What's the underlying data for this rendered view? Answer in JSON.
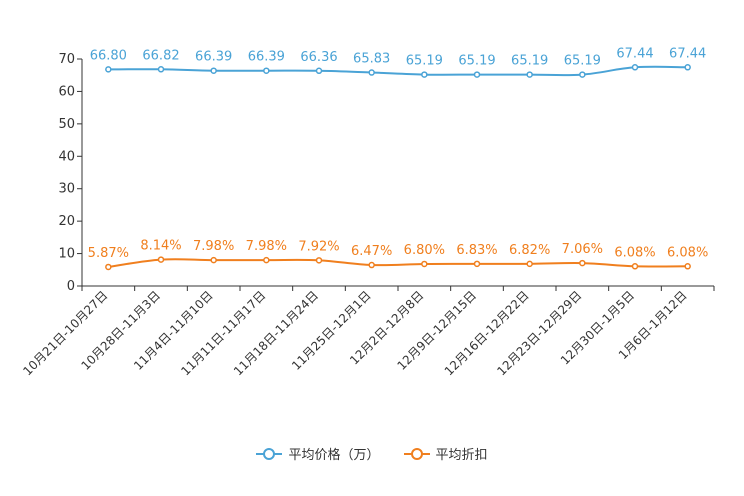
{
  "chart_data": {
    "type": "line",
    "title": "",
    "xlabel": "",
    "ylabel": "",
    "ylim": [
      0,
      70
    ],
    "yticks": [
      0,
      10,
      20,
      30,
      40,
      50,
      60,
      70
    ],
    "grid": false,
    "legend_position": "bottom-center",
    "categories": [
      "10月21日-10月27日",
      "10月28日-11月3日",
      "11月4日-11月10日",
      "11月11日-11月17日",
      "11月18日-11月24日",
      "11月25日-12月1日",
      "12月2日-12月8日",
      "12月9日-12月15日",
      "12月16日-12月22日",
      "12月23日-12月29日",
      "12月30日-1月5日",
      "1月6日-1月12日"
    ],
    "series": [
      {
        "name": "平均价格（万）",
        "color": "#4aa3d6",
        "values": [
          66.8,
          66.82,
          66.39,
          66.39,
          66.36,
          65.83,
          65.19,
          65.19,
          65.19,
          65.19,
          67.44,
          67.44
        ],
        "labels": [
          "66.80",
          "66.82",
          "66.39",
          "66.39",
          "66.36",
          "65.83",
          "65.19",
          "65.19",
          "65.19",
          "65.19",
          "67.44",
          "67.44"
        ]
      },
      {
        "name": "平均折扣",
        "color": "#f07f1e",
        "values": [
          5.87,
          8.14,
          7.98,
          7.98,
          7.92,
          6.47,
          6.8,
          6.83,
          6.82,
          7.06,
          6.08,
          6.08
        ],
        "labels": [
          "5.87%",
          "8.14%",
          "7.98%",
          "7.98%",
          "7.92%",
          "6.47%",
          "6.80%",
          "6.83%",
          "6.82%",
          "7.06%",
          "6.08%",
          "6.08%"
        ]
      }
    ]
  }
}
